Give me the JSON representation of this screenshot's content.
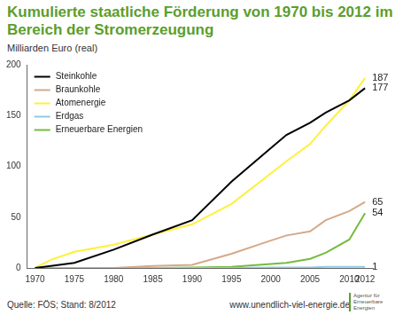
{
  "chart_data": {
    "type": "line",
    "title": "Kumulierte staatliche Förderung von 1970 bis 2012 im Bereich der Stromerzeugung",
    "subtitle": "Milliarden Euro (real)",
    "source": "Quelle: FÖS; Stand: 8/2012",
    "url": "www.unendlich-viel-energie.de",
    "logo": "Agentur für Erneuerbare Energien",
    "x": [
      1970,
      1972,
      1975,
      1980,
      1985,
      1990,
      1995,
      2000,
      2002,
      2005,
      2007,
      2010,
      2012
    ],
    "series": [
      {
        "name": "Steinkohle",
        "color": "#000000",
        "values": [
          0,
          2,
          5,
          18,
          33,
          47,
          85,
          118,
          131,
          143,
          153,
          165,
          177
        ]
      },
      {
        "name": "Braunkohle",
        "color": "#d4a98a",
        "values": [
          0,
          0,
          0,
          0,
          2,
          3,
          14,
          27,
          32,
          36,
          47,
          56,
          65
        ]
      },
      {
        "name": "Atomenergie",
        "color": "#fff03a",
        "values": [
          0,
          8,
          16,
          23,
          33,
          43,
          63,
          93,
          105,
          122,
          140,
          165,
          187
        ]
      },
      {
        "name": "Erdgas",
        "color": "#8ecae6",
        "values": [
          0,
          0,
          0,
          0,
          0,
          0,
          0,
          0.5,
          0.5,
          0.5,
          1,
          1,
          1
        ]
      },
      {
        "name": "Erneuerbare Energien",
        "color": "#76bb3f",
        "values": [
          0,
          0,
          0,
          0,
          0,
          0.5,
          1,
          4,
          5,
          9,
          15,
          28,
          54
        ]
      }
    ],
    "annotations": [
      {
        "text": "187",
        "x": 2012,
        "y": 187
      },
      {
        "text": "177",
        "x": 2012,
        "y": 177
      },
      {
        "text": "65",
        "x": 2012,
        "y": 65
      },
      {
        "text": "54",
        "x": 2012,
        "y": 54
      },
      {
        "text": "1",
        "x": 2012,
        "y": 1
      }
    ],
    "xlim": [
      1969,
      2013
    ],
    "xticks": [
      1970,
      1975,
      1980,
      1985,
      1990,
      1995,
      2000,
      2005,
      2010,
      2012
    ],
    "ylim": [
      0,
      200
    ],
    "yticks": [
      0,
      50,
      100,
      150,
      200
    ],
    "grid": false,
    "legend": "upper left"
  }
}
